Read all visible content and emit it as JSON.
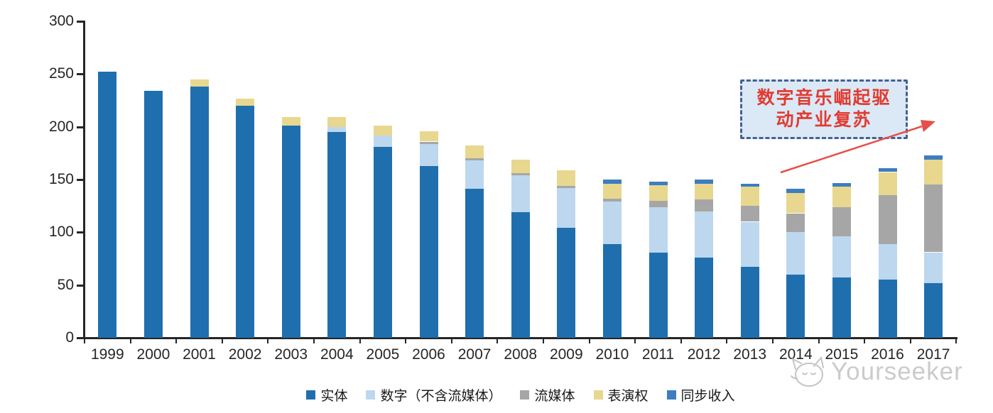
{
  "watermark": {
    "brand": "Yourseeker"
  },
  "annotation": {
    "line1": "数字音乐崛起驱",
    "line2": "动产业复苏",
    "text_color": "#e23b31",
    "box_fill": "#dbe9f6",
    "box_border": "#44618f",
    "arrow_color": "#e5504a"
  },
  "chart_data": {
    "type": "bar",
    "stacked": true,
    "title": "",
    "xlabel": "",
    "ylabel": "",
    "ylim": [
      0,
      300
    ],
    "yticks": [
      0,
      50,
      100,
      150,
      200,
      250,
      300
    ],
    "grid": false,
    "legend_position": "bottom",
    "categories": [
      "1999",
      "2000",
      "2001",
      "2002",
      "2003",
      "2004",
      "2005",
      "2006",
      "2007",
      "2008",
      "2009",
      "2010",
      "2011",
      "2012",
      "2013",
      "2014",
      "2015",
      "2016",
      "2017"
    ],
    "series": [
      {
        "key": "physical",
        "name": "实体",
        "color": "#1f6fae",
        "values": [
          252,
          234,
          238,
          220,
          201,
          195,
          181,
          163,
          141,
          119,
          104,
          89,
          81,
          76,
          67,
          60,
          57,
          55,
          52
        ]
      },
      {
        "key": "digital",
        "name": "数字（不含流媒体）",
        "color": "#bdd7ee",
        "values": [
          0,
          0,
          0,
          0,
          0,
          5,
          11,
          21,
          27,
          35,
          38,
          40,
          43,
          44,
          43,
          40,
          39,
          34,
          29
        ]
      },
      {
        "key": "streaming",
        "name": "流媒体",
        "color": "#a6a6a6",
        "values": [
          0,
          0,
          0,
          0,
          0,
          0,
          0,
          2,
          2,
          2,
          2,
          3,
          6,
          11,
          15,
          18,
          28,
          46,
          64
        ]
      },
      {
        "key": "performance",
        "name": "表演权",
        "color": "#e8d78f",
        "values": [
          0,
          0,
          7,
          7,
          8,
          9,
          9,
          10,
          12,
          13,
          15,
          14,
          15,
          15,
          18,
          19,
          19,
          22,
          24
        ]
      },
      {
        "key": "sync",
        "name": "同步收入",
        "color": "#3c7ec0",
        "values": [
          0,
          0,
          0,
          0,
          0,
          0,
          0,
          0,
          0,
          0,
          0,
          4,
          3,
          4,
          3,
          4,
          4,
          4,
          4
        ]
      }
    ]
  }
}
